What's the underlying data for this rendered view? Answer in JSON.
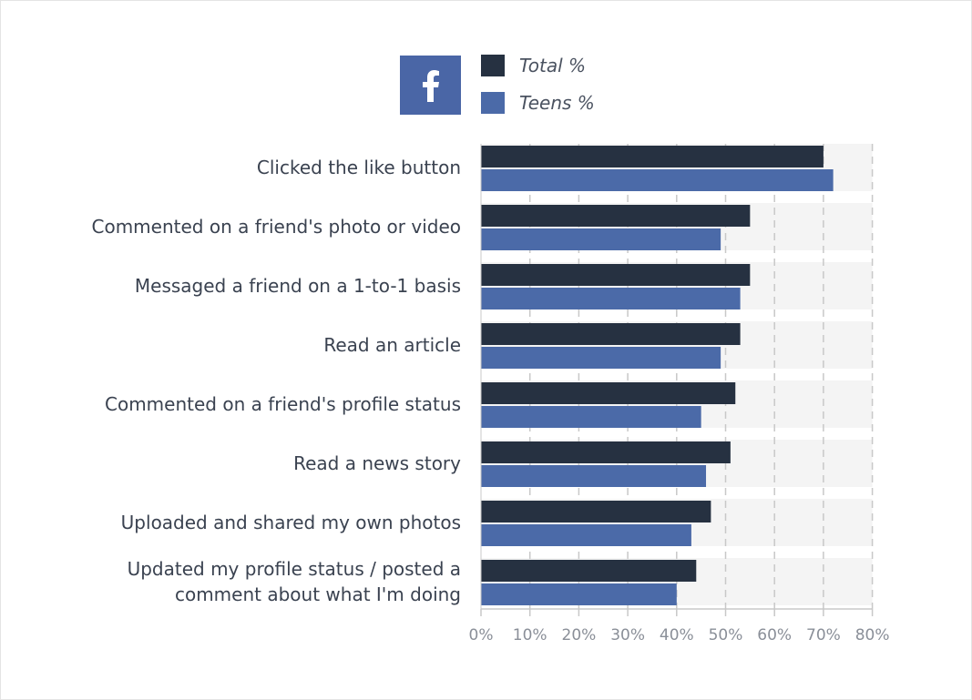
{
  "logo": {
    "glyph": "f",
    "icon": "facebook-icon",
    "color": "#4a66a6"
  },
  "chart_data": {
    "type": "bar",
    "orientation": "horizontal",
    "categories": [
      [
        "Clicked the like button"
      ],
      [
        "Commented on a friend's photo or video"
      ],
      [
        "Messaged a friend on a 1-to-1 basis"
      ],
      [
        "Read an article"
      ],
      [
        "Commented on a friend's profile status"
      ],
      [
        "Read a news story"
      ],
      [
        "Uploaded and shared my own photos"
      ],
      [
        "Updated my profile status / posted a",
        "comment about what I'm doing"
      ]
    ],
    "series": [
      {
        "name": "Total %",
        "color": "#263141",
        "values": [
          70,
          55,
          55,
          53,
          52,
          51,
          47,
          44
        ]
      },
      {
        "name": "Teens %",
        "color": "#4b6aa8",
        "values": [
          72,
          49,
          53,
          49,
          45,
          46,
          43,
          40
        ]
      }
    ],
    "x_ticks": [
      "0%",
      "10%",
      "20%",
      "30%",
      "40%",
      "50%",
      "60%",
      "70%",
      "80%"
    ],
    "xlim": [
      0,
      80
    ],
    "grid": true,
    "legend": "top"
  }
}
